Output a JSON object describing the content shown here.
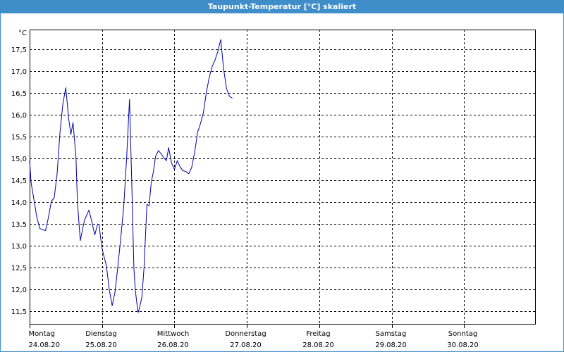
{
  "window": {
    "title": "Taupunkt-Temperatur [°C] skaliert"
  },
  "chart_data": {
    "type": "line",
    "title": "Taupunkt-Temperatur [°C] skaliert",
    "ylabel": "°C",
    "ylim": [
      11.2,
      17.95
    ],
    "xlim": [
      0,
      7
    ],
    "y_ticks": [
      "11,5",
      "12,0",
      "12,5",
      "13,0",
      "13,5",
      "14,0",
      "14,5",
      "15,0",
      "15,5",
      "16,0",
      "16,5",
      "17,0",
      "17,5"
    ],
    "y_tick_values": [
      11.5,
      12.0,
      12.5,
      13.0,
      13.5,
      14.0,
      14.5,
      15.0,
      15.5,
      16.0,
      16.5,
      17.0,
      17.5
    ],
    "x_ticks": [
      {
        "day": "Montag",
        "date": "24.08.20"
      },
      {
        "day": "Dienstag",
        "date": "25.08.20"
      },
      {
        "day": "Mittwoch",
        "date": "26.08.20"
      },
      {
        "day": "Donnerstag",
        "date": "27.08.20"
      },
      {
        "day": "Freitag",
        "date": "28.08.20"
      },
      {
        "day": "Samstag",
        "date": "29.08.20"
      },
      {
        "day": "Sonntag",
        "date": "30.08.20"
      }
    ],
    "grid": true,
    "line_color": "#0000aa",
    "series": [
      {
        "x": [
          0.0,
          0.02,
          0.06,
          0.1,
          0.14,
          0.18,
          0.22,
          0.26,
          0.3,
          0.34,
          0.38,
          0.42,
          0.46,
          0.5,
          0.54,
          0.57,
          0.6,
          0.64,
          0.66,
          0.7,
          0.74,
          0.76,
          0.82,
          0.86,
          0.9,
          0.94,
          0.96,
          0.98,
          1.0,
          1.02,
          1.06,
          1.1,
          1.14,
          1.18,
          1.22,
          1.26,
          1.3,
          1.34,
          1.38,
          1.41,
          1.44,
          1.46,
          1.48,
          1.5,
          1.52,
          1.55,
          1.58,
          1.62,
          1.65,
          1.68,
          1.71,
          1.74,
          1.78,
          1.82,
          1.86,
          1.89,
          1.92,
          1.96,
          2.0,
          2.04,
          2.08,
          2.12,
          2.16,
          2.2,
          2.24,
          2.28,
          2.32,
          2.36,
          2.4,
          2.44,
          2.48,
          2.52,
          2.56,
          2.6,
          2.64,
          2.68,
          2.72,
          2.76,
          2.78,
          2.8
        ],
        "y": [
          14.95,
          14.45,
          14.05,
          13.65,
          13.4,
          13.37,
          13.35,
          13.65,
          14.02,
          14.1,
          14.65,
          15.6,
          16.25,
          16.62,
          15.9,
          15.55,
          15.82,
          15.05,
          14.0,
          13.12,
          13.45,
          13.6,
          13.82,
          13.55,
          13.25,
          13.5,
          13.48,
          13.2,
          12.95,
          12.8,
          12.55,
          12.0,
          11.63,
          11.95,
          12.55,
          13.2,
          13.9,
          15.0,
          16.35,
          14.5,
          12.5,
          12.0,
          11.7,
          11.48,
          11.6,
          11.82,
          12.5,
          13.95,
          13.92,
          14.45,
          14.7,
          15.05,
          15.18,
          15.1,
          15.0,
          14.95,
          15.25,
          14.9,
          14.75,
          14.95,
          14.8,
          14.72,
          14.7,
          14.65,
          14.8,
          15.15,
          15.6,
          15.8,
          16.05,
          16.5,
          16.85,
          17.1,
          17.25,
          17.45,
          17.72,
          17.05,
          16.6,
          16.42,
          16.4,
          16.38
        ]
      }
    ]
  }
}
